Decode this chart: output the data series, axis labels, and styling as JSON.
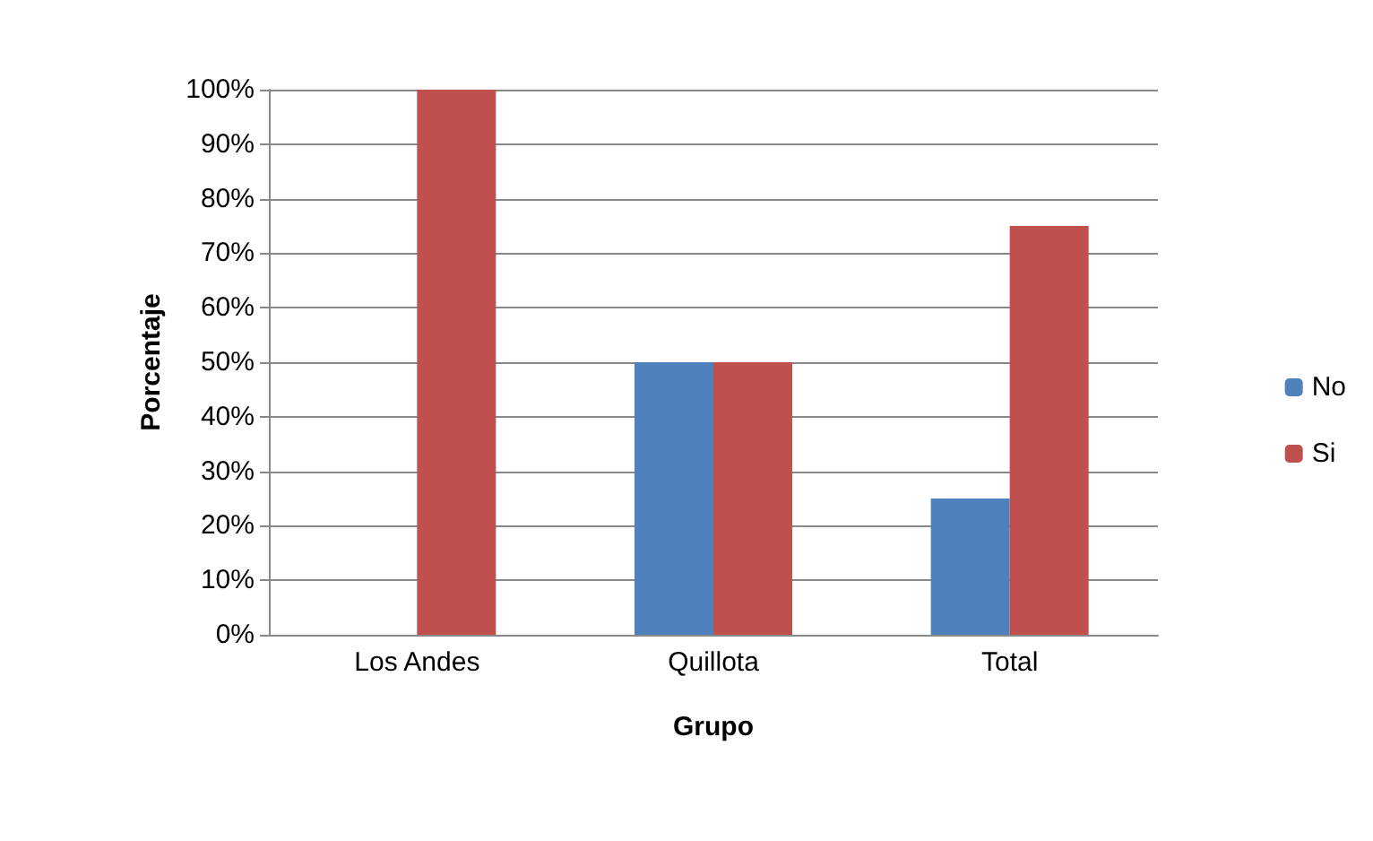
{
  "chart_data": {
    "type": "bar",
    "xlabel": "Grupo",
    "ylabel": "Porcentaje",
    "categories": [
      "Los Andes",
      "Quillota",
      "Total"
    ],
    "series": [
      {
        "name": "No",
        "color": "#4f81bd",
        "values": [
          0,
          50,
          25
        ]
      },
      {
        "name": "Si",
        "color": "#c0504d",
        "values": [
          100,
          50,
          75
        ]
      }
    ],
    "ylim": [
      0,
      100
    ],
    "yticks": [
      {
        "value": 0,
        "label": "0%"
      },
      {
        "value": 10,
        "label": "10%"
      },
      {
        "value": 20,
        "label": "20%"
      },
      {
        "value": 30,
        "label": "30%"
      },
      {
        "value": 40,
        "label": "40%"
      },
      {
        "value": 50,
        "label": "50%"
      },
      {
        "value": 60,
        "label": "60%"
      },
      {
        "value": 70,
        "label": "70%"
      },
      {
        "value": 80,
        "label": "80%"
      },
      {
        "value": 90,
        "label": "90%"
      },
      {
        "value": 100,
        "label": "100%"
      }
    ],
    "grid": "y",
    "legend": "right"
  }
}
